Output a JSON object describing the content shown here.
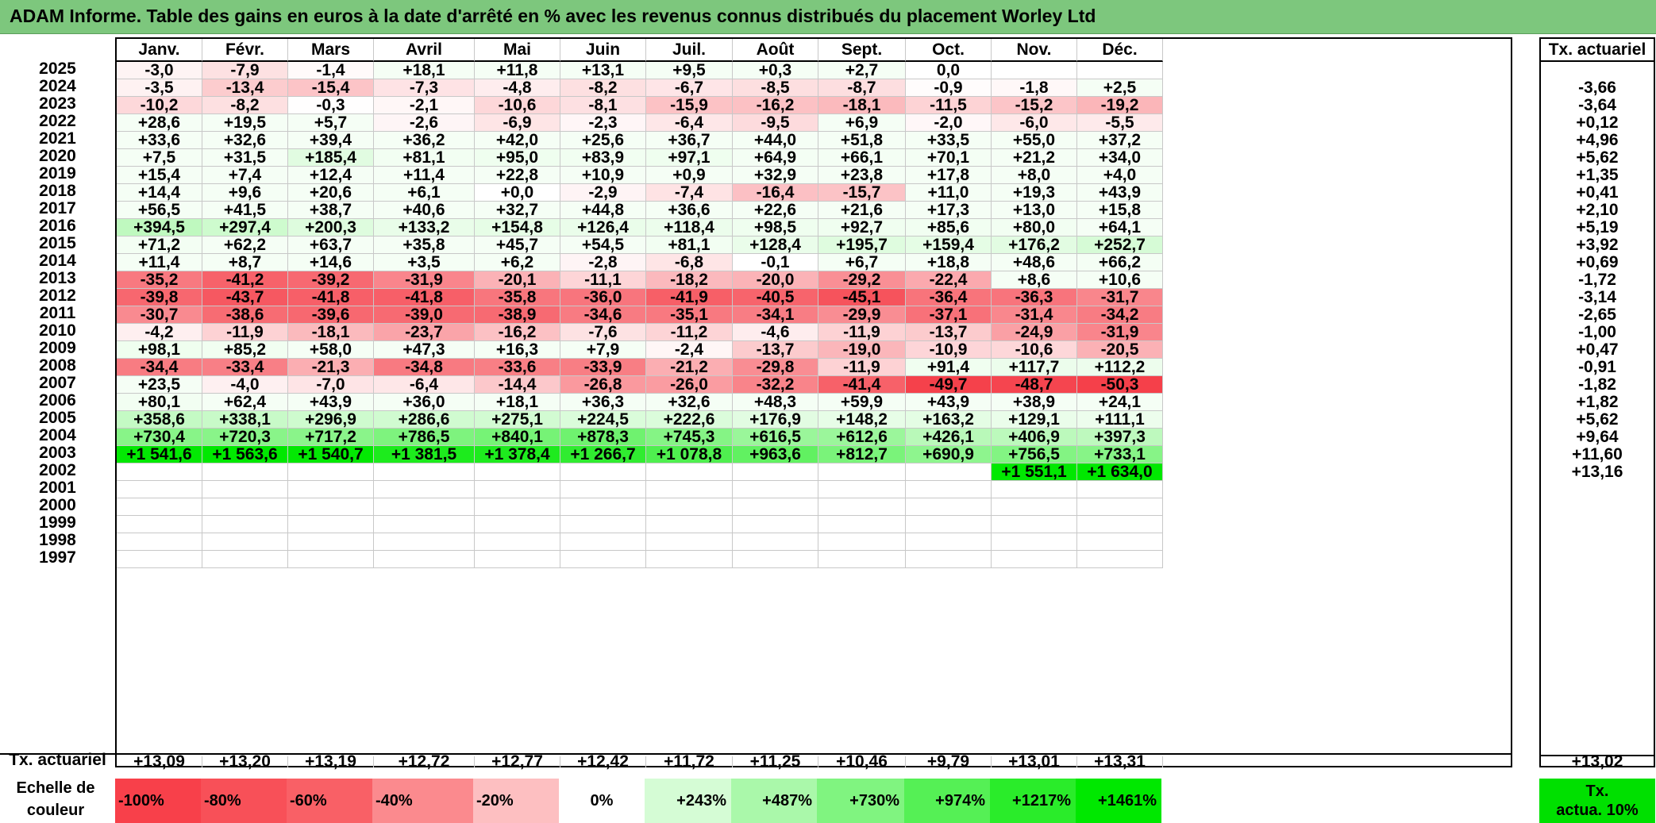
{
  "title": "ADAM Informe. Table des gains en euros à la date d'arrêté en % avec les revenus connus distribués du placement Worley Ltd",
  "months": [
    "Janv.",
    "Févr.",
    "Mars",
    "Avril",
    "Mai",
    "Juin",
    "Juil.",
    "Août",
    "Sept.",
    "Oct.",
    "Nov.",
    "Déc."
  ],
  "right_header": "Tx. actuariel",
  "rows": [
    {
      "year": "2025",
      "values": [
        "-3,0",
        "-7,9",
        "-1,4",
        "+18,1",
        "+11,8",
        "+13,1",
        "+9,5",
        "+0,3",
        "+2,7",
        "0,0",
        "",
        ""
      ],
      "actuarial": ""
    },
    {
      "year": "2024",
      "values": [
        "-3,5",
        "-13,4",
        "-15,4",
        "-7,3",
        "-4,8",
        "-8,2",
        "-6,7",
        "-8,5",
        "-8,7",
        "-0,9",
        "-1,8",
        "+2,5"
      ],
      "actuarial": "-3,66"
    },
    {
      "year": "2023",
      "values": [
        "-10,2",
        "-8,2",
        "-0,3",
        "-2,1",
        "-10,6",
        "-8,1",
        "-15,9",
        "-16,2",
        "-18,1",
        "-11,5",
        "-15,2",
        "-19,2"
      ],
      "actuarial": "-3,64"
    },
    {
      "year": "2022",
      "values": [
        "+28,6",
        "+19,5",
        "+5,7",
        "-2,6",
        "-6,9",
        "-2,3",
        "-6,4",
        "-9,5",
        "+6,9",
        "-2,0",
        "-6,0",
        "-5,5"
      ],
      "actuarial": "+0,12"
    },
    {
      "year": "2021",
      "values": [
        "+33,6",
        "+32,6",
        "+39,4",
        "+36,2",
        "+42,0",
        "+25,6",
        "+36,7",
        "+44,0",
        "+51,8",
        "+33,5",
        "+55,0",
        "+37,2"
      ],
      "actuarial": "+4,96"
    },
    {
      "year": "2020",
      "values": [
        "+7,5",
        "+31,5",
        "+185,4",
        "+81,1",
        "+95,0",
        "+83,9",
        "+97,1",
        "+64,9",
        "+66,1",
        "+70,1",
        "+21,2",
        "+34,0"
      ],
      "actuarial": "+5,62"
    },
    {
      "year": "2019",
      "values": [
        "+15,4",
        "+7,4",
        "+12,4",
        "+11,4",
        "+22,8",
        "+10,9",
        "+0,9",
        "+32,9",
        "+23,8",
        "+17,8",
        "+8,0",
        "+4,0"
      ],
      "actuarial": "+1,35"
    },
    {
      "year": "2018",
      "values": [
        "+14,4",
        "+9,6",
        "+20,6",
        "+6,1",
        "+0,0",
        "-2,9",
        "-7,4",
        "-16,4",
        "-15,7",
        "+11,0",
        "+19,3",
        "+43,9"
      ],
      "actuarial": "+0,41"
    },
    {
      "year": "2017",
      "values": [
        "+56,5",
        "+41,5",
        "+38,7",
        "+40,6",
        "+32,7",
        "+44,8",
        "+36,6",
        "+22,6",
        "+21,6",
        "+17,3",
        "+13,0",
        "+15,8"
      ],
      "actuarial": "+2,10"
    },
    {
      "year": "2016",
      "values": [
        "+394,5",
        "+297,4",
        "+200,3",
        "+133,2",
        "+154,8",
        "+126,4",
        "+118,4",
        "+98,5",
        "+92,7",
        "+85,6",
        "+80,0",
        "+64,1"
      ],
      "actuarial": "+5,19"
    },
    {
      "year": "2015",
      "values": [
        "+71,2",
        "+62,2",
        "+63,7",
        "+35,8",
        "+45,7",
        "+54,5",
        "+81,1",
        "+128,4",
        "+195,7",
        "+159,4",
        "+176,2",
        "+252,7"
      ],
      "actuarial": "+3,92"
    },
    {
      "year": "2014",
      "values": [
        "+11,4",
        "+8,7",
        "+14,6",
        "+3,5",
        "+6,2",
        "-2,8",
        "-6,8",
        "-0,1",
        "+6,7",
        "+18,8",
        "+48,6",
        "+66,2"
      ],
      "actuarial": "+0,69"
    },
    {
      "year": "2013",
      "values": [
        "-35,2",
        "-41,2",
        "-39,2",
        "-31,9",
        "-20,1",
        "-11,1",
        "-18,2",
        "-20,0",
        "-29,2",
        "-22,4",
        "+8,6",
        "+10,6"
      ],
      "actuarial": "-1,72"
    },
    {
      "year": "2012",
      "values": [
        "-39,8",
        "-43,7",
        "-41,8",
        "-41,8",
        "-35,8",
        "-36,0",
        "-41,9",
        "-40,5",
        "-45,1",
        "-36,4",
        "-36,3",
        "-31,7"
      ],
      "actuarial": "-3,14"
    },
    {
      "year": "2011",
      "values": [
        "-30,7",
        "-38,6",
        "-39,6",
        "-39,0",
        "-38,9",
        "-34,6",
        "-35,1",
        "-34,1",
        "-29,9",
        "-37,1",
        "-31,4",
        "-34,2"
      ],
      "actuarial": "-2,65"
    },
    {
      "year": "2010",
      "values": [
        "-4,2",
        "-11,9",
        "-18,1",
        "-23,7",
        "-16,2",
        "-7,6",
        "-11,2",
        "-4,6",
        "-11,9",
        "-13,7",
        "-24,9",
        "-31,9"
      ],
      "actuarial": "-1,00"
    },
    {
      "year": "2009",
      "values": [
        "+98,1",
        "+85,2",
        "+58,0",
        "+47,3",
        "+16,3",
        "+7,9",
        "-2,4",
        "-13,7",
        "-19,0",
        "-10,9",
        "-10,6",
        "-20,5"
      ],
      "actuarial": "+0,47"
    },
    {
      "year": "2008",
      "values": [
        "-34,4",
        "-33,4",
        "-21,3",
        "-34,8",
        "-33,6",
        "-33,9",
        "-21,2",
        "-29,8",
        "-11,9",
        "+91,4",
        "+117,7",
        "+112,2"
      ],
      "actuarial": "-0,91"
    },
    {
      "year": "2007",
      "values": [
        "+23,5",
        "-4,0",
        "-7,0",
        "-6,4",
        "-14,4",
        "-26,8",
        "-26,0",
        "-32,2",
        "-41,4",
        "-49,7",
        "-48,7",
        "-50,3"
      ],
      "actuarial": "-1,82"
    },
    {
      "year": "2006",
      "values": [
        "+80,1",
        "+62,4",
        "+43,9",
        "+36,0",
        "+18,1",
        "+36,3",
        "+32,6",
        "+48,3",
        "+59,9",
        "+43,9",
        "+38,9",
        "+24,1"
      ],
      "actuarial": "+1,82"
    },
    {
      "year": "2005",
      "values": [
        "+358,6",
        "+338,1",
        "+296,9",
        "+286,6",
        "+275,1",
        "+224,5",
        "+222,6",
        "+176,9",
        "+148,2",
        "+163,2",
        "+129,1",
        "+111,1"
      ],
      "actuarial": "+5,62"
    },
    {
      "year": "2004",
      "values": [
        "+730,4",
        "+720,3",
        "+717,2",
        "+786,5",
        "+840,1",
        "+878,3",
        "+745,3",
        "+616,5",
        "+612,6",
        "+426,1",
        "+406,9",
        "+397,3"
      ],
      "actuarial": "+9,64"
    },
    {
      "year": "2003",
      "values": [
        "+1 541,6",
        "+1 563,6",
        "+1 540,7",
        "+1 381,5",
        "+1 378,4",
        "+1 266,7",
        "+1 078,8",
        "+963,6",
        "+812,7",
        "+690,9",
        "+756,5",
        "+733,1"
      ],
      "actuarial": "+11,60"
    },
    {
      "year": "2002",
      "values": [
        "",
        "",
        "",
        "",
        "",
        "",
        "",
        "",
        "",
        "",
        "+1 551,1",
        "+1 634,0"
      ],
      "actuarial": "+13,16"
    },
    {
      "year": "2001",
      "values": [
        "",
        "",
        "",
        "",
        "",
        "",
        "",
        "",
        "",
        "",
        "",
        ""
      ],
      "actuarial": ""
    },
    {
      "year": "2000",
      "values": [
        "",
        "",
        "",
        "",
        "",
        "",
        "",
        "",
        "",
        "",
        "",
        ""
      ],
      "actuarial": ""
    },
    {
      "year": "1999",
      "values": [
        "",
        "",
        "",
        "",
        "",
        "",
        "",
        "",
        "",
        "",
        "",
        ""
      ],
      "actuarial": ""
    },
    {
      "year": "1998",
      "values": [
        "",
        "",
        "",
        "",
        "",
        "",
        "",
        "",
        "",
        "",
        "",
        ""
      ],
      "actuarial": ""
    },
    {
      "year": "1997",
      "values": [
        "",
        "",
        "",
        "",
        "",
        "",
        "",
        "",
        "",
        "",
        "",
        ""
      ],
      "actuarial": ""
    }
  ],
  "footer": {
    "label": "Tx. actuariel",
    "values": [
      "+13,09",
      "+13,20",
      "+13,19",
      "+12,72",
      "+12,77",
      "+12,42",
      "+11,72",
      "+11,25",
      "+10,46",
      "+9,79",
      "+13,01",
      "+13,31"
    ],
    "total": "+13,02"
  },
  "scale": {
    "label_line1": "Echelle de",
    "label_line2": "couleur",
    "items": [
      {
        "text": "-100%",
        "color": "#f8404a"
      },
      {
        "text": "-80%",
        "color": "#f85058"
      },
      {
        "text": "-60%",
        "color": "#f96066"
      },
      {
        "text": "-40%",
        "color": "#fb8a8e"
      },
      {
        "text": "-20%",
        "color": "#fdbfc1"
      },
      {
        "text": "0%",
        "color": "#ffffff"
      },
      {
        "text": "+243%",
        "color": "#d5fcd5"
      },
      {
        "text": "+487%",
        "color": "#aaf8aa"
      },
      {
        "text": "+730%",
        "color": "#80f480"
      },
      {
        "text": "+974%",
        "color": "#55f055"
      },
      {
        "text": "+1217%",
        "color": "#2aec2a"
      },
      {
        "text": "+1461%",
        "color": "#00e800"
      }
    ],
    "right_line1": "Tx.",
    "right_line2": "actua. 10%",
    "right_color": "#00e000"
  },
  "colors": {
    "title_bg": "#7dc77d",
    "grid_line": "#c8c8c8"
  }
}
